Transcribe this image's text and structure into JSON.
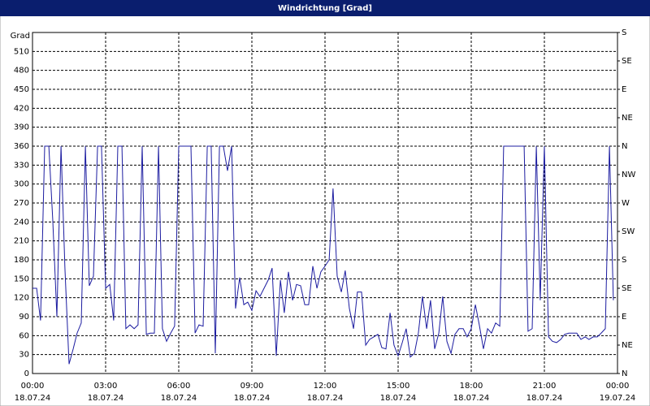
{
  "window_title": "Windrichtung [Grad]",
  "chart_data": {
    "type": "line",
    "y_label": "Grad",
    "x": [
      0,
      0.17,
      0.33,
      0.5,
      0.67,
      0.83,
      1,
      1.17,
      1.33,
      1.5,
      1.67,
      1.83,
      2,
      2.17,
      2.33,
      2.5,
      2.67,
      2.83,
      3,
      3.17,
      3.33,
      3.5,
      3.67,
      3.83,
      4,
      4.17,
      4.33,
      4.5,
      4.67,
      4.83,
      5,
      5.17,
      5.33,
      5.5,
      5.67,
      5.83,
      6,
      6.5,
      6.67,
      6.83,
      7,
      7.17,
      7.33,
      7.5,
      7.67,
      7.83,
      8,
      8.17,
      8.33,
      8.5,
      8.67,
      8.83,
      9,
      9.17,
      9.33,
      9.5,
      9.67,
      9.83,
      10,
      10.17,
      10.33,
      10.5,
      10.67,
      10.83,
      11,
      11.17,
      11.33,
      11.5,
      11.67,
      11.83,
      12,
      12.17,
      12.33,
      12.5,
      12.67,
      12.83,
      13,
      13.17,
      13.33,
      13.5,
      13.67,
      13.83,
      14,
      14.17,
      14.33,
      14.5,
      14.67,
      14.83,
      15,
      15.17,
      15.33,
      15.5,
      15.67,
      15.83,
      16,
      16.17,
      16.33,
      16.5,
      16.67,
      16.83,
      17,
      17.17,
      17.33,
      17.5,
      17.67,
      17.83,
      18,
      18.17,
      18.33,
      18.5,
      18.67,
      18.83,
      19,
      19.17,
      19.33,
      20.17,
      20.33,
      20.5,
      20.67,
      20.83,
      21,
      21.17,
      21.33,
      21.5,
      21.67,
      21.83,
      22,
      22.17,
      22.33,
      22.5,
      22.67,
      22.83,
      23,
      23.17,
      23.33,
      23.5,
      23.67,
      23.83
    ],
    "series": [
      {
        "name": "Windrichtung",
        "color": "#1c1ca0",
        "values": [
          135,
          135,
          84,
          360,
          360,
          244,
          90,
          360,
          167,
          15,
          39,
          64,
          80,
          360,
          139,
          154,
          360,
          360,
          135,
          141,
          84,
          360,
          360,
          71,
          77,
          71,
          77,
          360,
          62,
          64,
          64,
          360,
          71,
          51,
          64,
          75,
          360,
          360,
          64,
          77,
          75,
          360,
          360,
          32,
          360,
          360,
          321,
          360,
          103,
          152,
          109,
          113,
          100,
          131,
          122,
          135,
          148,
          167,
          28,
          148,
          96,
          161,
          116,
          141,
          139,
          109,
          109,
          170,
          135,
          161,
          170,
          180,
          293,
          154,
          129,
          163,
          103,
          71,
          129,
          129,
          45,
          54,
          58,
          62,
          41,
          39,
          96,
          45,
          28,
          49,
          71,
          26,
          32,
          64,
          122,
          71,
          116,
          39,
          64,
          122,
          51,
          32,
          62,
          71,
          71,
          58,
          71,
          109,
          77,
          39,
          71,
          64,
          80,
          75,
          360,
          360,
          67,
          71,
          360,
          116,
          360,
          58,
          51,
          49,
          54,
          62,
          64,
          64,
          64,
          54,
          58,
          54,
          58,
          58,
          64,
          71,
          360,
          116
        ]
      }
    ],
    "xlim": [
      0,
      24
    ],
    "xticks": [
      {
        "value": 0,
        "label": "00:00"
      },
      {
        "value": 3,
        "label": "03:00"
      },
      {
        "value": 6,
        "label": "06:00"
      },
      {
        "value": 9,
        "label": "09:00"
      },
      {
        "value": 12,
        "label": "12:00"
      },
      {
        "value": 15,
        "label": "15:00"
      },
      {
        "value": 18,
        "label": "18:00"
      },
      {
        "value": 21,
        "label": "21:00"
      },
      {
        "value": 24,
        "label": "00:00"
      }
    ],
    "x_dates": [
      "18.07.24",
      "18.07.24",
      "18.07.24",
      "18.07.24",
      "18.07.24",
      "18.07.24",
      "18.07.24",
      "18.07.24",
      "19.07.24"
    ],
    "ylim": [
      0,
      540
    ],
    "yticks": [
      0,
      30,
      60,
      90,
      120,
      150,
      180,
      210,
      240,
      270,
      300,
      330,
      360,
      390,
      420,
      450,
      480,
      510
    ],
    "y2lim": [
      0,
      540
    ],
    "y2ticks": [
      {
        "value": 0,
        "label": "N"
      },
      {
        "value": 45,
        "label": "NE"
      },
      {
        "value": 90,
        "label": "E"
      },
      {
        "value": 135,
        "label": "SE"
      },
      {
        "value": 180,
        "label": "S"
      },
      {
        "value": 225,
        "label": "SW"
      },
      {
        "value": 270,
        "label": "W"
      },
      {
        "value": 315,
        "label": "NW"
      },
      {
        "value": 360,
        "label": "N"
      },
      {
        "value": 405,
        "label": "NE"
      },
      {
        "value": 450,
        "label": "E"
      },
      {
        "value": 495,
        "label": "SE"
      },
      {
        "value": 540,
        "label": "S"
      }
    ],
    "grid": true
  }
}
